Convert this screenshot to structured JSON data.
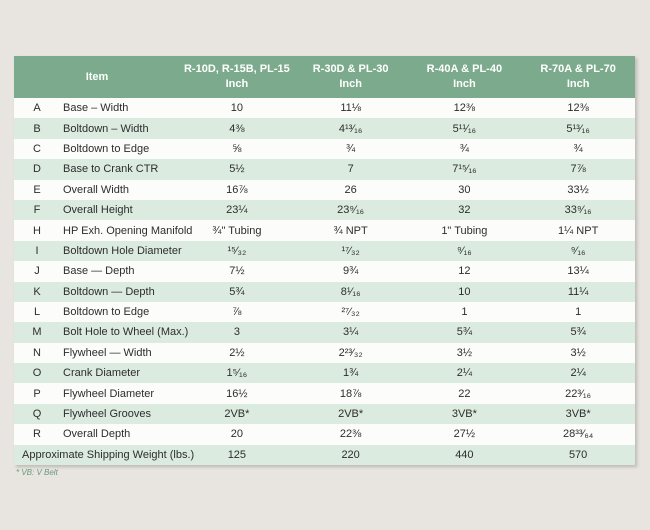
{
  "colors": {
    "page_bg": "#e8e5e0",
    "header_green": "#7bab8c",
    "row_green": "#dcebdf",
    "row_white": "#fcfdfb",
    "text": "#2d2d2d",
    "header_text": "#ffffff",
    "footnote_green": "#69997b"
  },
  "table": {
    "header": {
      "item_label": "Item",
      "columns": [
        {
          "model": "R-10D, R-15B, PL-15",
          "unit": "Inch"
        },
        {
          "model": "R-30D & PL-30",
          "unit": "Inch"
        },
        {
          "model": "R-40A & PL-40",
          "unit": "Inch"
        },
        {
          "model": "R-70A & PL-70",
          "unit": "Inch"
        }
      ]
    },
    "rows": [
      {
        "letter": "A",
        "item": "Base – Width",
        "values": [
          "10",
          "11⅛",
          "12⅜",
          "12⅜"
        ]
      },
      {
        "letter": "B",
        "item": "Boltdown – Width",
        "values": [
          "4⅜",
          "4¹³⁄₁₆",
          "5¹¹⁄₁₆",
          "5¹³⁄₁₆"
        ]
      },
      {
        "letter": "C",
        "item": "Boltdown to Edge",
        "values": [
          "⅝",
          "¾",
          "¾",
          "¾"
        ]
      },
      {
        "letter": "D",
        "item": "Base to Crank CTR",
        "values": [
          "5½",
          "7",
          "7¹⁵⁄₁₆",
          "7⅞"
        ]
      },
      {
        "letter": "E",
        "item": "Overall Width",
        "values": [
          "16⅞",
          "26",
          "30",
          "33½"
        ]
      },
      {
        "letter": "F",
        "item": "Overall Height",
        "values": [
          "23¼",
          "23⁹⁄₁₆",
          "32",
          "33⁹⁄₁₆"
        ]
      },
      {
        "letter": "H",
        "item": "HP Exh. Opening Manifold",
        "values": [
          "¾\" Tubing",
          "¾ NPT",
          "1\" Tubing",
          "1¼ NPT"
        ]
      },
      {
        "letter": "I",
        "item": "Boltdown Hole Diameter",
        "values": [
          "¹⁵⁄₃₂",
          "¹⁷⁄₃₂",
          "⁹⁄₁₆",
          "⁹⁄₁₆"
        ]
      },
      {
        "letter": "J",
        "item": "Base — Depth",
        "values": [
          "7½",
          "9¾",
          "12",
          "13¼"
        ]
      },
      {
        "letter": "K",
        "item": "Boltdown — Depth",
        "values": [
          "5¾",
          "8¹⁄₁₆",
          "10",
          "11¼"
        ]
      },
      {
        "letter": "L",
        "item": "Boltdown to Edge",
        "values": [
          "⅞",
          "²⁷⁄₃₂",
          "1",
          "1"
        ]
      },
      {
        "letter": "M",
        "item": "Bolt Hole to Wheel (Max.)",
        "values": [
          "3",
          "3¼",
          "5¾",
          "5¾"
        ]
      },
      {
        "letter": "N",
        "item": "Flywheel — Width",
        "values": [
          "2½",
          "2²³⁄₃₂",
          "3½",
          "3½"
        ]
      },
      {
        "letter": "O",
        "item": "Crank Diameter",
        "values": [
          "1⁵⁄₁₆",
          "1¾",
          "2¼",
          "2¼"
        ]
      },
      {
        "letter": "P",
        "item": "Flywheel Diameter",
        "values": [
          "16½",
          "18⅞",
          "22",
          "22³⁄₁₆"
        ]
      },
      {
        "letter": "Q",
        "item": "Flywheel Grooves",
        "values": [
          "2VB*",
          "2VB*",
          "3VB*",
          "3VB*"
        ]
      },
      {
        "letter": "R",
        "item": "Overall Depth",
        "values": [
          "20",
          "22⅜",
          "27½",
          "28³³⁄₆₄"
        ]
      }
    ],
    "footer_row": {
      "label": "Approximate Shipping Weight (lbs.)",
      "values": [
        "125",
        "220",
        "440",
        "570"
      ]
    }
  },
  "footnote": "* VB: V Belt"
}
